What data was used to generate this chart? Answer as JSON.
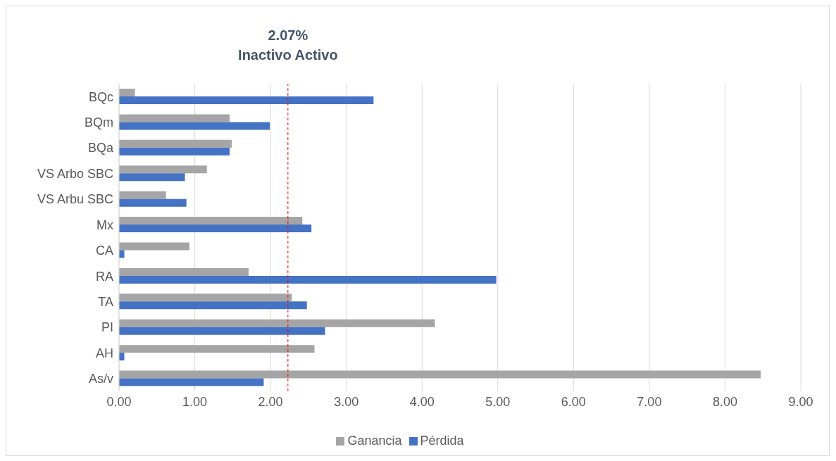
{
  "chart_data": {
    "type": "bar",
    "orientation": "horizontal",
    "categories": [
      "BQc",
      "BQm",
      "BQa",
      "VS Arbo SBC",
      "VS Arbu SBC",
      "Mx",
      "CA",
      "RA",
      "TA",
      "PI",
      "AH",
      "As/v"
    ],
    "series": [
      {
        "name": "Ganancia",
        "color": "#a5a5a5",
        "values": [
          0.21,
          1.46,
          1.49,
          1.16,
          0.62,
          2.42,
          0.93,
          1.71,
          2.28,
          4.17,
          2.58,
          8.47
        ]
      },
      {
        "name": "Pérdida",
        "color": "#4472c4",
        "values": [
          3.36,
          1.99,
          1.46,
          0.87,
          0.89,
          2.54,
          0.07,
          4.98,
          2.48,
          2.72,
          0.07,
          1.91
        ]
      }
    ],
    "xlim": [
      0,
      9
    ],
    "xticks": [
      {
        "value": 0,
        "label": "0.00"
      },
      {
        "value": 1,
        "label": "1.00"
      },
      {
        "value": 2,
        "label": "2.00"
      },
      {
        "value": 3,
        "label": "3.00"
      },
      {
        "value": 4,
        "label": "4.00"
      },
      {
        "value": 5,
        "label": "5.00"
      },
      {
        "value": 6,
        "label": "6.00"
      },
      {
        "value": 7,
        "label": "7.00"
      },
      {
        "value": 8,
        "label": "8.00"
      },
      {
        "value": 9,
        "label": "9.00"
      }
    ],
    "grid": "x",
    "legend": "bottom",
    "ref_lines": [
      {
        "axis": "x",
        "value": 2.23,
        "color": "#ff0000",
        "line_style": "dashed"
      }
    ],
    "annotations": [
      "2.07%",
      "Inactivo Activo"
    ]
  }
}
